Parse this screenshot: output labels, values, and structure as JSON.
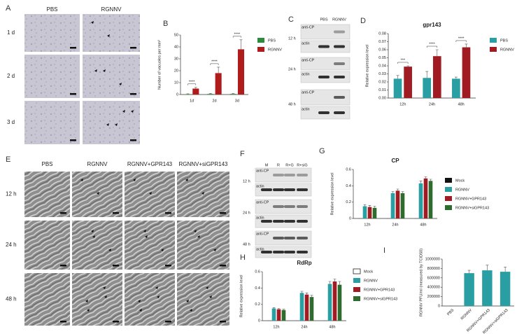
{
  "figure": {
    "panel_letters": [
      "A",
      "B",
      "C",
      "D",
      "E",
      "F",
      "G",
      "H",
      "I"
    ],
    "A": {
      "columns": [
        "PBS",
        "RGNNV"
      ],
      "rows": [
        "1 d",
        "2 d",
        "3 d"
      ]
    },
    "C": {
      "columns": [
        "PBS",
        "RGNNV"
      ],
      "rows": [
        "12 h",
        "24 h",
        "48 h"
      ],
      "bands": [
        "anti-CP",
        "actin"
      ]
    },
    "E": {
      "columns": [
        "PBS",
        "RGNNV",
        "RGNNV+GPR143",
        "RGNNV+siGPR143"
      ],
      "rows": [
        "12 h",
        "24 h",
        "48 h"
      ]
    },
    "F": {
      "columns": [
        "M",
        "R",
        "R+G",
        "R+siG"
      ],
      "rows": [
        "12 h",
        "24 h",
        "48 h"
      ],
      "bands": [
        "anti-CP",
        "actin"
      ]
    }
  },
  "chart_data": [
    {
      "type": "bar",
      "y_label": "Number of vacuoles per mm²",
      "categories": [
        "1d",
        "2d",
        "3d"
      ],
      "series": [
        {
          "name": "PBS",
          "color": "#2e8b3e",
          "values": [
            0.3,
            0.5,
            0.5
          ],
          "errors": [
            0.3,
            0.4,
            0.4
          ]
        },
        {
          "name": "RGNNV",
          "color": "#b01c1c",
          "values": [
            5,
            18,
            38
          ],
          "errors": [
            1,
            5,
            8
          ]
        }
      ],
      "annotations": [
        "****",
        "****",
        "****"
      ],
      "ylim": [
        0,
        50
      ],
      "yticks": [
        0,
        10,
        20,
        30,
        40,
        50
      ],
      "legend": "right"
    },
    {
      "type": "bar",
      "title": "gpr143",
      "y_label": "Relative expression level",
      "categories": [
        "12h",
        "24h",
        "48h"
      ],
      "series": [
        {
          "name": "PBS",
          "color": "#2a9fa3",
          "values": [
            0.024,
            0.025,
            0.024
          ],
          "errors": [
            0.004,
            0.008,
            0.002
          ]
        },
        {
          "name": "RGNNV",
          "color": "#a01b22",
          "values": [
            0.039,
            0.052,
            0.063
          ],
          "errors": [
            0.001,
            0.008,
            0.004
          ]
        }
      ],
      "annotations": [
        "***",
        "****",
        "****"
      ],
      "ylim": [
        0,
        0.08
      ],
      "yticks": [
        {
          "value": 0,
          "label": "0.00"
        },
        0.01,
        0.02,
        0.03,
        0.04,
        0.05,
        0.06,
        0.07,
        0.08
      ],
      "legend": "right"
    },
    {
      "type": "bar",
      "title": "CP",
      "y_label": "Relative expression level",
      "categories": [
        "12h",
        "24h",
        "48h"
      ],
      "series": [
        {
          "name": "Mock",
          "color": "#111111",
          "values": [
            0,
            0,
            0
          ],
          "errors": [
            0,
            0,
            0
          ]
        },
        {
          "name": "RGNNV",
          "color": "#2a9fa3",
          "values": [
            0.15,
            0.31,
            0.43
          ],
          "errors": [
            0.02,
            0.02,
            0.03
          ]
        },
        {
          "name": "RGNNV+GPR143",
          "color": "#a01b22",
          "values": [
            0.14,
            0.34,
            0.49
          ],
          "errors": [
            0.02,
            0.02,
            0.02
          ]
        },
        {
          "name": "RGNNV+siGPR143",
          "color": "#2e6b2e",
          "values": [
            0.13,
            0.31,
            0.46
          ],
          "errors": [
            0.02,
            0.02,
            0.02
          ]
        }
      ],
      "ylim": [
        0,
        0.6
      ],
      "yticks": [
        0,
        0.2,
        0.4,
        0.6
      ],
      "legend": "right"
    },
    {
      "type": "bar",
      "title": "RdRp",
      "y_label": "Relative expression level",
      "categories": [
        "12h",
        "24h",
        "48h"
      ],
      "series": [
        {
          "name": "Mock",
          "color": "#ffffff",
          "values": [
            0,
            0,
            0
          ],
          "errors": [
            0,
            0,
            0
          ]
        },
        {
          "name": "RGNNV",
          "color": "#2a9fa3",
          "values": [
            0.15,
            0.34,
            0.45
          ],
          "errors": [
            0.01,
            0.02,
            0.03
          ]
        },
        {
          "name": "RGNNV+GPR143",
          "color": "#a01b22",
          "values": [
            0.14,
            0.32,
            0.48
          ],
          "errors": [
            0.01,
            0.02,
            0.03
          ]
        },
        {
          "name": "RGNNV+siGPR143",
          "color": "#2e6b2e",
          "values": [
            0.13,
            0.29,
            0.44
          ],
          "errors": [
            0.01,
            0.02,
            0.04
          ]
        }
      ],
      "ylim": [
        0,
        0.6
      ],
      "yticks": [
        0,
        0.2,
        0.4,
        0.6
      ],
      "legend": "right"
    },
    {
      "type": "bar",
      "y_label": "RGNNV PFU/ml (measured by TCID50)",
      "categories": [
        "PBS",
        "RGNNV",
        "RGNNV+GPR143",
        "RGNNV+siGPR143"
      ],
      "series": [
        {
          "color": "#2a9fa3",
          "values": [
            0,
            700000,
            760000,
            730000
          ],
          "errors": [
            0,
            60000,
            110000,
            100000
          ]
        }
      ],
      "ylim": [
        0,
        1000000
      ],
      "yticks": [
        0,
        200000,
        400000,
        600000,
        800000,
        1000000
      ]
    }
  ]
}
